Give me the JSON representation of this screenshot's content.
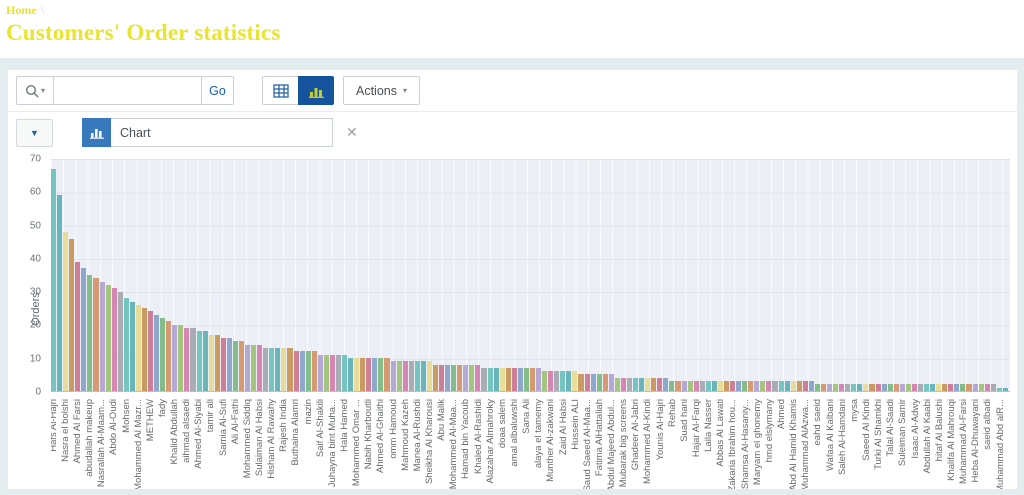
{
  "page": {
    "breadcrumb_home": "Home",
    "breadcrumb_separator": "\\",
    "title": "Customers' Order statistics"
  },
  "toolbar": {
    "search_placeholder": "",
    "search_value": "",
    "go_label": "Go",
    "actions_label": "Actions"
  },
  "tabs": {
    "chart_tab_label": "Chart",
    "close_glyph": "✕",
    "dropdown_glyph": "▼"
  },
  "colors": {
    "accent_yellow": "#e8e430",
    "selected_view_button_bg": "#15549c",
    "selected_view_icon": "#c3cb2e",
    "tab_icon_bg": "#3879bd",
    "link_blue": "#1a61a8",
    "region_bg": "#e3edef",
    "plot_bg": "#edeff6"
  },
  "chart_data": {
    "type": "bar",
    "title": "",
    "xlabel": "",
    "ylabel": "Orders",
    "ylim": [
      0,
      70
    ],
    "yticks": [
      0,
      10,
      20,
      30,
      40,
      50,
      60,
      70
    ],
    "grid": true,
    "legend": "none",
    "label_every_nth_bar": 2,
    "categories": [
      "Hafs Al-Hajri",
      "Nasra el bolshi",
      "Ahmed Al Farsi",
      "abudallah makeup",
      "Nasrallah Al-Maam...",
      "Abdo Al-Oudi",
      "Mohsen",
      "Mohammed Al Mazr...",
      "METHEW",
      "fady",
      "Khalid Abdullah",
      "aihmad alsaedi",
      "Ahmed Al-Siyabi",
      "tamir ali",
      "Samia Al-Sufi",
      "Ali Al-Fathi",
      "Mohammed Siddiq",
      "Sulaiman Al Habsi",
      "Hisham Al Rawahy",
      "Rajesh India",
      "Buthaina Alamri",
      "mazin",
      "Saif Al-Shakili",
      "Juhayna bint Muha...",
      "Hala Hamed",
      "Mohammed Omar ...",
      "Nabih Kharboutli",
      "Ahmed Al-Ghaithi",
      "omm Hamoud",
      "Mahmoud Kazeh",
      "Manea Al-Rushdi",
      "Sheikha Al Kharousi",
      "Abu Malik",
      "Mohammed Al-Maa...",
      "Hamad bin Yacoub",
      "Khaled Al-Rashidi",
      "Alazahar Almahroky",
      "doaa salem",
      "amal albaluwshi",
      "Sana Ali",
      "alaya el tamemy",
      "Munther Al-zakwani",
      "Zaid Al Habsi",
      "Hussein ALI",
      "Saud Saeed Al-Maa...",
      "Fatima AlHattaliah",
      "Abdul Majeed Abdul...",
      "Mubarak big screens",
      "Ghadeer Al-Jabri",
      "Mohammed Al-Kindi",
      "Younis Al-Hajri",
      "Rehab",
      "Suad hani",
      "Hajar Al-Farqi",
      "Laila Nasser",
      "Abbas Al Lawati",
      "Zakaria Ibrahim hou...",
      "Shamsa Al-Hasaniy...",
      "Maryam el ghonemy",
      "hmd elslymany",
      "Ahmed",
      "Abd Al Hamid Khamis",
      "Muhammad AlAzwa...",
      "eahd saeid",
      "Wafaa Al Kalbani",
      "Saleh Al-Hamdani",
      "mysa",
      "Saeed Al Kindi",
      "Turki Al Shamkhi",
      "Talal Al-Saadi",
      "Suleiman Samir",
      "Isaac Al-Adwy",
      "Abdullah Al Kaabi",
      "hitaf Al Balushi",
      "Khalifa Al Mahrouqi",
      "Muhammad Al-Farsi",
      "Heba Al-Dhuwayani",
      "saeid albadi",
      "Muhammad Abd alR..."
    ],
    "values": [
      67,
      59,
      48,
      46,
      39,
      37,
      35,
      34,
      33,
      32,
      31,
      30,
      28,
      27,
      26,
      25,
      24,
      23,
      22,
      21,
      20,
      20,
      19,
      19,
      18,
      18,
      17,
      17,
      16,
      16,
      15,
      15,
      14,
      14,
      14,
      13,
      13,
      13,
      13,
      13,
      12,
      12,
      12,
      12,
      11,
      11,
      11,
      11,
      11,
      10,
      10,
      10,
      10,
      10,
      10,
      10,
      9,
      9,
      9,
      9,
      9,
      9,
      9,
      8,
      8,
      8,
      8,
      8,
      8,
      8,
      8,
      7,
      7,
      7,
      7,
      7,
      7,
      7,
      7,
      7,
      7,
      6,
      6,
      6,
      6,
      6,
      6,
      5,
      5,
      5,
      5,
      5,
      5,
      4,
      4,
      4,
      4,
      4,
      4,
      4,
      4,
      4,
      3,
      3,
      3,
      3,
      3,
      3,
      3,
      3,
      3,
      3,
      3,
      3,
      3,
      3,
      3,
      3,
      3,
      3,
      3,
      3,
      3,
      3,
      3,
      3,
      2,
      2,
      2,
      2,
      2,
      2,
      2,
      2,
      2,
      2,
      2,
      2,
      2,
      2,
      2,
      2,
      2,
      2,
      2,
      2,
      2,
      2,
      2,
      2,
      2,
      2,
      2,
      2,
      2,
      2,
      1,
      1
    ],
    "palette": [
      "#76c4c0",
      "#69b5ba",
      "#e8dc9a",
      "#c99a62",
      "#cc7f96",
      "#8fa7cb",
      "#84bd8a",
      "#d69a72",
      "#b5a9d4",
      "#a3c57f",
      "#d687b1",
      "#a9adb3"
    ]
  }
}
